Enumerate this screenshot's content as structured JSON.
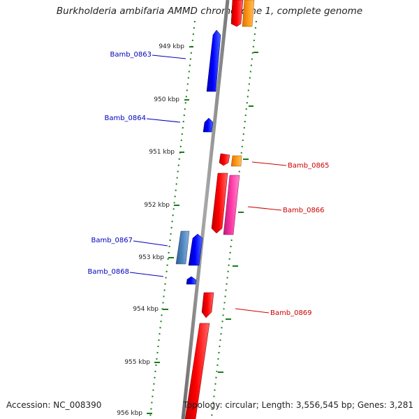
{
  "title": "Burkholderia ambifaria AMMD chromosome 1, complete genome",
  "accession_text": "Accession: NC_008390",
  "summary_text": "Topology: circular; Length: 3,556,545 bp; Genes: 3,281",
  "colors": {
    "backbone": "#8a8a8a",
    "tick": "#1a7a1a",
    "label_left": "#0000bb",
    "label_right": "#cc0000"
  },
  "ticks": [
    {
      "label": "949 kbp"
    },
    {
      "label": "950 kbp"
    },
    {
      "label": "951 kbp"
    },
    {
      "label": "952 kbp"
    },
    {
      "label": "953 kbp"
    },
    {
      "label": "954 kbp"
    },
    {
      "label": "955 kbp"
    },
    {
      "label": "956 kbp"
    }
  ],
  "gene_labels": [
    {
      "text": "Bamb_0863"
    },
    {
      "text": "Bamb_0864"
    },
    {
      "text": "Bamb_0865"
    },
    {
      "text": "Bamb_0866"
    },
    {
      "text": "Bamb_0867"
    },
    {
      "text": "Bamb_0868"
    },
    {
      "text": "Bamb_0869"
    }
  ]
}
